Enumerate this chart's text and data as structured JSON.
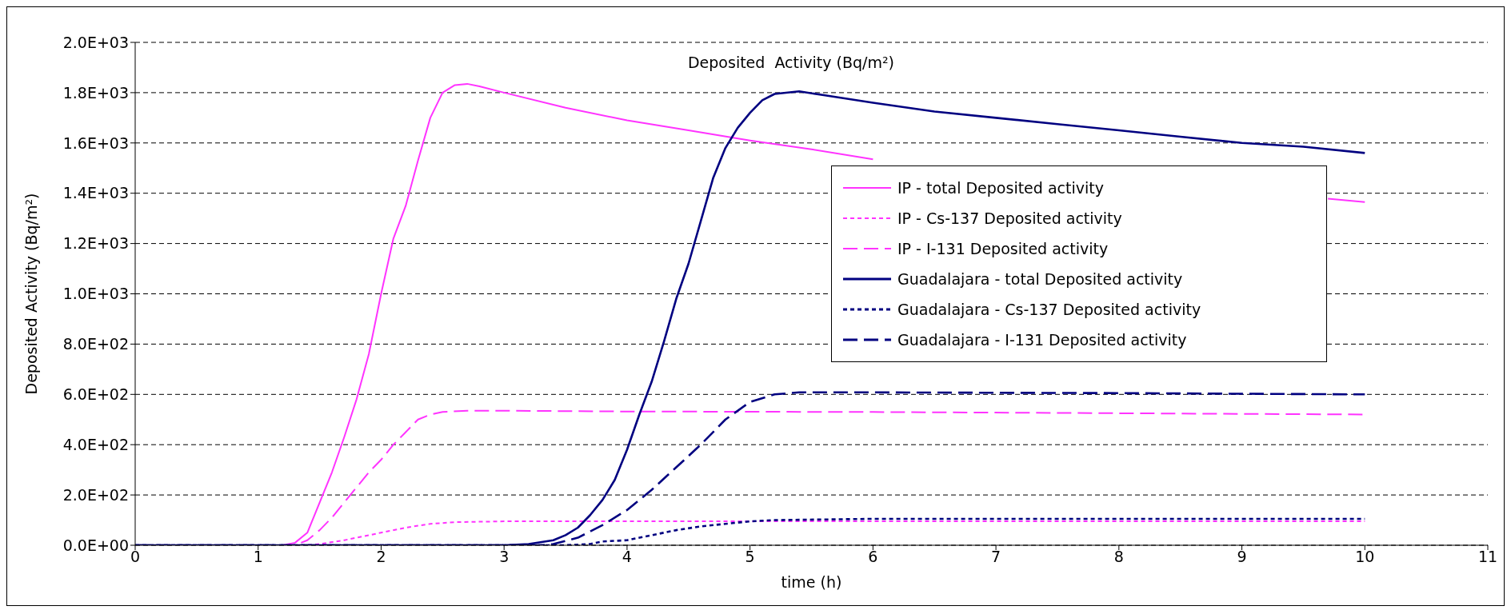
{
  "chart_data": {
    "type": "line",
    "title": "Deposited  Activity (Bq/m²)",
    "xlabel": "time (h)",
    "ylabel": "Deposited Activity (Bq/m²)",
    "xlim": [
      0,
      11
    ],
    "xticks": [
      0,
      1,
      2,
      3,
      4,
      5,
      6,
      7,
      8,
      9,
      10,
      11
    ],
    "ylim": [
      0,
      2000
    ],
    "yticks": [
      {
        "value": 0,
        "label": "0.0E+00"
      },
      {
        "value": 200,
        "label": "2.0E+02"
      },
      {
        "value": 400,
        "label": "4.0E+02"
      },
      {
        "value": 600,
        "label": "6.0E+02"
      },
      {
        "value": 800,
        "label": "8.0E+02"
      },
      {
        "value": 1000,
        "label": "1.0E+03"
      },
      {
        "value": 1200,
        "label": "1.2E+03"
      },
      {
        "value": 1400,
        "label": "1.4E+03"
      },
      {
        "value": 1600,
        "label": "1.6E+03"
      },
      {
        "value": 1800,
        "label": "1.8E+03"
      },
      {
        "value": 2000,
        "label": "2.0E+03"
      }
    ],
    "grid": "y",
    "legend": "right",
    "marker": "none",
    "series": [
      {
        "name": "IP - total Deposited  activity",
        "color": "#ff33ff",
        "line_style": "solid",
        "x": [
          0,
          1,
          1.2,
          1.3,
          1.4,
          1.5,
          1.6,
          1.7,
          1.8,
          1.9,
          2.0,
          2.1,
          2.2,
          2.3,
          2.4,
          2.5,
          2.6,
          2.7,
          2.8,
          3.0,
          3.5,
          4.0,
          4.5,
          5.0,
          5.5,
          6.0,
          6.5,
          7,
          8,
          9,
          9.7,
          10
        ],
        "values": [
          0,
          0,
          0,
          10,
          50,
          170,
          290,
          430,
          580,
          760,
          1000,
          1220,
          1350,
          1530,
          1700,
          1800,
          1830,
          1835,
          1825,
          1800,
          1740,
          1690,
          1650,
          1610,
          1575,
          1535,
          null,
          null,
          null,
          null,
          1378,
          1365
        ]
      },
      {
        "name": "IP - Cs-137 Deposited  activity",
        "color": "#ff33ff",
        "line_style": "dotted",
        "x": [
          0,
          1,
          1.4,
          1.5,
          1.7,
          2.0,
          2.2,
          2.4,
          2.6,
          3.0,
          5,
          7,
          10
        ],
        "values": [
          0,
          0,
          0,
          5,
          20,
          50,
          70,
          85,
          92,
          95,
          95,
          95,
          95
        ]
      },
      {
        "name": "IP - I-131 Deposited  activity",
        "color": "#ff33ff",
        "line_style": "dashed",
        "x": [
          0,
          1,
          1.3,
          1.4,
          1.5,
          1.6,
          1.7,
          1.8,
          1.9,
          2.0,
          2.1,
          2.2,
          2.3,
          2.4,
          2.5,
          2.7,
          3.0,
          4,
          6,
          8,
          10
        ],
        "values": [
          0,
          0,
          0,
          20,
          60,
          110,
          170,
          230,
          290,
          340,
          400,
          450,
          500,
          520,
          530,
          535,
          535,
          532,
          530,
          525,
          520
        ]
      },
      {
        "name": "Guadalajara - total Deposited   activity",
        "color": "#000080",
        "line_style": "solid",
        "x": [
          0,
          3.0,
          3.2,
          3.4,
          3.5,
          3.6,
          3.7,
          3.8,
          3.9,
          4.0,
          4.1,
          4.2,
          4.3,
          4.4,
          4.5,
          4.6,
          4.7,
          4.8,
          4.9,
          5.0,
          5.1,
          5.2,
          5.4,
          5.6,
          6,
          6.5,
          7,
          7.5,
          8,
          8.5,
          9,
          9.5,
          10
        ],
        "values": [
          0,
          0,
          5,
          20,
          40,
          70,
          120,
          180,
          260,
          380,
          520,
          650,
          810,
          980,
          1120,
          1290,
          1460,
          1580,
          1660,
          1720,
          1770,
          1795,
          1805,
          1790,
          1760,
          1725,
          1700,
          1675,
          1650,
          1625,
          1600,
          1585,
          1560
        ]
      },
      {
        "name": "Guadalajara - Cs-137 Deposited  activity",
        "color": "#000080",
        "line_style": "dotted",
        "x": [
          0,
          3.5,
          3.7,
          3.8,
          4.0,
          4.2,
          4.4,
          4.6,
          4.8,
          5.0,
          5.2,
          6,
          8,
          10
        ],
        "values": [
          0,
          0,
          5,
          15,
          20,
          40,
          60,
          75,
          85,
          95,
          100,
          105,
          105,
          105
        ]
      },
      {
        "name": "Guadalajara - I-131 Deposited  activity",
        "color": "#000080",
        "line_style": "dashed",
        "x": [
          0,
          3.3,
          3.4,
          3.6,
          3.8,
          4.0,
          4.2,
          4.4,
          4.6,
          4.8,
          5.0,
          5.2,
          5.4,
          6,
          8,
          10
        ],
        "values": [
          0,
          0,
          5,
          30,
          80,
          140,
          220,
          310,
          400,
          500,
          570,
          600,
          608,
          608,
          605,
          600
        ]
      }
    ]
  }
}
